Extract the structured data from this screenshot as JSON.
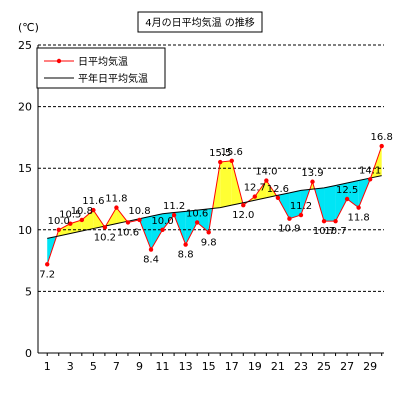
{
  "chart_data": {
    "type": "line",
    "title": "4月の日平均気温 の推移",
    "unit_label": "(℃)",
    "ylim": [
      0,
      25
    ],
    "y_ticks": [
      0,
      5,
      10,
      15,
      20,
      25
    ],
    "x_ticks": [
      1,
      3,
      5,
      7,
      9,
      11,
      13,
      15,
      17,
      19,
      21,
      23,
      25,
      27,
      29
    ],
    "grid": "horizontal-dashed",
    "legend_position": "top-left",
    "x": [
      1,
      2,
      3,
      4,
      5,
      6,
      7,
      8,
      9,
      10,
      11,
      12,
      13,
      14,
      15,
      16,
      17,
      18,
      19,
      20,
      21,
      22,
      23,
      24,
      25,
      26,
      27,
      28,
      29,
      30
    ],
    "series": [
      {
        "name": "日平均気温",
        "color": "#ff0000",
        "values": [
          7.2,
          10.0,
          10.5,
          10.8,
          11.6,
          10.2,
          11.8,
          10.6,
          10.8,
          8.4,
          10.0,
          11.2,
          8.8,
          10.6,
          9.8,
          15.5,
          15.6,
          12.0,
          12.7,
          14.0,
          12.6,
          10.9,
          11.2,
          13.9,
          10.7,
          10.7,
          12.5,
          11.8,
          14.1,
          16.8
        ]
      },
      {
        "name": "平年日平均気温",
        "color": "#000000",
        "values": [
          9.3,
          9.5,
          9.7,
          9.9,
          10.1,
          10.3,
          10.5,
          10.7,
          10.9,
          11.1,
          11.3,
          11.4,
          11.5,
          11.6,
          11.7,
          11.8,
          12.0,
          12.2,
          12.4,
          12.6,
          12.8,
          13.0,
          13.2,
          13.3,
          13.4,
          13.6,
          13.8,
          14.0,
          14.2,
          14.4
        ]
      }
    ],
    "fill_colors": {
      "above": "#ffff33",
      "below": "#00e5f5"
    }
  }
}
